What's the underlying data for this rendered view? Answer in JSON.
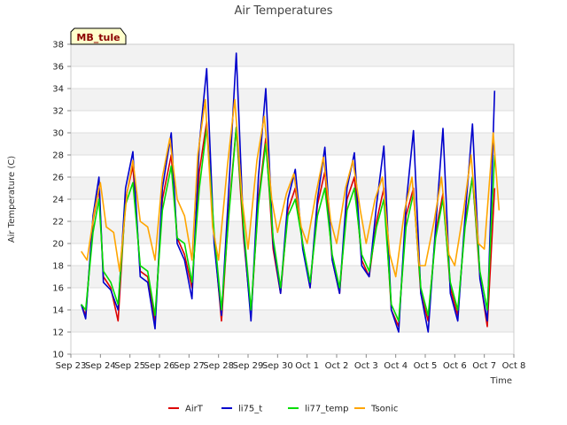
{
  "chart_data": {
    "type": "line",
    "title": "Air Temperatures",
    "xlabel": "Time",
    "ylabel": "Air Temperature (C)",
    "badge": "MB_tule",
    "ylim": [
      10,
      38
    ],
    "yticks": [
      10,
      12,
      14,
      16,
      18,
      20,
      22,
      24,
      26,
      28,
      30,
      32,
      34,
      36,
      38
    ],
    "xlim": [
      0,
      15
    ],
    "x_unit": "days since Sep 23",
    "xtick_labels": [
      "Sep 23",
      "Sep 24",
      "Sep 25",
      "Sep 26",
      "Sep 27",
      "Sep 28",
      "Sep 29",
      "Sep 30",
      "Oct 1",
      "Oct 2",
      "Oct 3",
      "Oct 4",
      "Oct 5",
      "Oct 6",
      "Oct 7",
      "Oct 8"
    ],
    "grid": true,
    "legend_position": "bottom",
    "series": [
      {
        "name": "AirT",
        "color": "#dd0000",
        "x": [
          0.35,
          0.5,
          0.75,
          0.95,
          1.1,
          1.35,
          1.6,
          1.85,
          2.1,
          2.35,
          2.6,
          2.85,
          3.1,
          3.4,
          3.6,
          3.85,
          4.1,
          4.35,
          4.6,
          4.85,
          5.1,
          5.35,
          5.6,
          5.85,
          6.1,
          6.35,
          6.6,
          6.85,
          7.1,
          7.35,
          7.6,
          7.85,
          8.1,
          8.35,
          8.6,
          8.85,
          9.1,
          9.35,
          9.6,
          9.85,
          10.1,
          10.35,
          10.6,
          10.85,
          11.1,
          11.35,
          11.6,
          11.85,
          12.1,
          12.35,
          12.6,
          12.85,
          13.1,
          13.35,
          13.6,
          13.85,
          14.1,
          14.35
        ],
        "y": [
          14.5,
          13.5,
          22.0,
          25.0,
          17.0,
          16.0,
          13.0,
          24.0,
          27.0,
          17.5,
          17.0,
          13.0,
          24.0,
          28.0,
          20.5,
          19.0,
          16.0,
          26.5,
          31.0,
          20.5,
          13.0,
          23.0,
          30.5,
          20.5,
          13.5,
          24.0,
          29.5,
          19.5,
          15.5,
          23.0,
          25.0,
          20.0,
          16.0,
          23.5,
          26.5,
          18.5,
          15.5,
          24.0,
          26.0,
          18.5,
          17.0,
          22.0,
          25.0,
          14.0,
          12.5,
          22.5,
          25.0,
          15.5,
          13.0,
          21.0,
          24.5,
          16.0,
          13.5,
          22.0,
          26.0,
          17.0,
          12.5,
          25.0
        ]
      },
      {
        "name": "li75_t",
        "color": "#0000cc",
        "x": [
          0.35,
          0.5,
          0.75,
          0.95,
          1.1,
          1.35,
          1.6,
          1.85,
          2.1,
          2.35,
          2.6,
          2.85,
          3.1,
          3.4,
          3.6,
          3.85,
          4.1,
          4.35,
          4.6,
          4.85,
          5.1,
          5.35,
          5.6,
          5.85,
          6.1,
          6.35,
          6.6,
          6.85,
          7.1,
          7.35,
          7.6,
          7.85,
          8.1,
          8.35,
          8.6,
          8.85,
          9.1,
          9.35,
          9.6,
          9.85,
          10.1,
          10.35,
          10.6,
          10.85,
          11.1,
          11.35,
          11.6,
          11.85,
          12.1,
          12.35,
          12.6,
          12.85,
          13.1,
          13.35,
          13.6,
          13.85,
          14.1,
          14.35
        ],
        "y": [
          14.5,
          13.2,
          22.5,
          26.0,
          16.5,
          15.8,
          14.0,
          25.0,
          28.3,
          17.0,
          16.5,
          12.3,
          25.0,
          30.0,
          20.0,
          18.5,
          15.0,
          29.0,
          35.8,
          20.0,
          13.5,
          25.0,
          37.2,
          21.0,
          13.0,
          26.0,
          34.0,
          20.0,
          15.5,
          24.0,
          26.7,
          19.5,
          16.0,
          24.0,
          28.7,
          18.5,
          15.5,
          25.0,
          28.2,
          18.0,
          17.0,
          23.5,
          28.8,
          14.0,
          12.0,
          23.5,
          30.2,
          15.5,
          12.0,
          21.5,
          30.4,
          15.5,
          13.0,
          22.5,
          30.8,
          16.8,
          13.0,
          33.8
        ]
      },
      {
        "name": "li77_temp",
        "color": "#00dd00",
        "x": [
          0.35,
          0.5,
          0.75,
          0.95,
          1.1,
          1.35,
          1.6,
          1.85,
          2.1,
          2.35,
          2.6,
          2.85,
          3.1,
          3.4,
          3.6,
          3.85,
          4.1,
          4.35,
          4.6,
          4.85,
          5.1,
          5.35,
          5.6,
          5.85,
          6.1,
          6.35,
          6.6,
          6.85,
          7.1,
          7.35,
          7.6,
          7.85,
          8.1,
          8.35,
          8.6,
          8.85,
          9.1,
          9.35,
          9.6,
          9.85,
          10.1,
          10.35,
          10.6,
          10.85,
          11.1,
          11.35,
          11.6,
          11.85,
          12.1,
          12.35,
          12.6,
          12.85,
          13.1,
          13.35,
          13.6,
          13.85,
          14.1,
          14.35
        ],
        "y": [
          14.5,
          14.0,
          21.0,
          24.0,
          17.5,
          16.5,
          14.5,
          23.5,
          25.5,
          18.0,
          17.5,
          13.5,
          23.0,
          27.0,
          20.5,
          20.0,
          16.5,
          25.0,
          30.5,
          21.0,
          14.0,
          22.5,
          30.5,
          21.5,
          14.0,
          23.5,
          29.0,
          20.5,
          16.0,
          22.5,
          24.0,
          20.0,
          16.5,
          22.5,
          25.0,
          19.0,
          16.0,
          23.0,
          25.0,
          19.0,
          17.5,
          21.5,
          24.0,
          14.5,
          13.0,
          21.5,
          24.5,
          16.0,
          13.5,
          20.5,
          24.0,
          16.5,
          14.0,
          21.5,
          26.0,
          17.5,
          14.0,
          28.0
        ]
      },
      {
        "name": "Tsonic",
        "color": "#ffa500",
        "x": [
          0.35,
          0.55,
          0.8,
          1.0,
          1.2,
          1.45,
          1.65,
          1.9,
          2.1,
          2.35,
          2.6,
          2.85,
          3.1,
          3.35,
          3.6,
          3.85,
          4.1,
          4.3,
          4.55,
          4.8,
          5.0,
          5.3,
          5.55,
          5.8,
          6.0,
          6.3,
          6.55,
          6.8,
          7.0,
          7.3,
          7.55,
          7.8,
          8.0,
          8.3,
          8.55,
          8.8,
          9.0,
          9.3,
          9.55,
          9.8,
          10.0,
          10.3,
          10.55,
          10.8,
          11.0,
          11.3,
          11.55,
          11.8,
          12.0,
          12.3,
          12.55,
          12.8,
          13.0,
          13.3,
          13.55,
          13.8,
          14.0,
          14.3,
          14.5
        ],
        "y": [
          19.3,
          18.5,
          23.0,
          25.5,
          21.5,
          21.0,
          17.5,
          24.5,
          27.5,
          22.0,
          21.5,
          18.5,
          26.0,
          29.5,
          24.0,
          22.5,
          18.5,
          28.0,
          33.0,
          21.5,
          18.5,
          27.0,
          33.0,
          24.0,
          19.5,
          27.5,
          31.5,
          24.0,
          21.0,
          24.5,
          26.3,
          21.5,
          20.0,
          24.5,
          27.8,
          22.0,
          20.0,
          25.0,
          27.5,
          23.0,
          20.0,
          24.0,
          26.0,
          19.0,
          17.0,
          23.0,
          26.0,
          18.0,
          18.0,
          22.0,
          26.0,
          19.0,
          18.0,
          23.0,
          28.0,
          20.0,
          19.5,
          30.0,
          23.0
        ]
      }
    ]
  }
}
